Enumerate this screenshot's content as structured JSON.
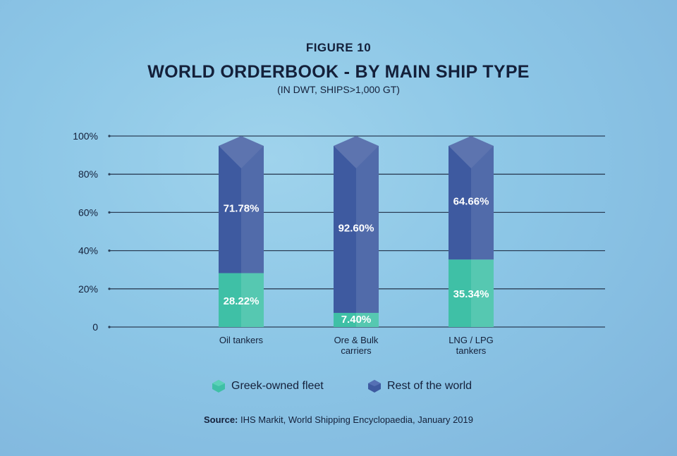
{
  "header": {
    "figure": "FIGURE 10",
    "title": "WORLD ORDERBOOK - BY MAIN SHIP TYPE",
    "subtitle": "(IN DWT, SHIPS>1,000 GT)"
  },
  "chart_data": {
    "type": "bar",
    "stacked": true,
    "categories": [
      [
        "Oil tankers"
      ],
      [
        "Ore & Bulk",
        "carriers"
      ],
      [
        "LNG / LPG",
        "tankers"
      ]
    ],
    "series": [
      {
        "name": "Greek-owned fleet",
        "values": [
          28.22,
          7.4,
          35.34
        ],
        "labels": [
          "28.22%",
          "7.40%",
          "35.34%"
        ],
        "color": "#3fc0a6"
      },
      {
        "name": "Rest of the world",
        "values": [
          71.78,
          92.6,
          64.66
        ],
        "labels": [
          "71.78%",
          "92.60%",
          "64.66%"
        ],
        "color": "#3e5aa0"
      }
    ],
    "yticks": [
      "0",
      "20%",
      "40%",
      "60%",
      "80%",
      "100%"
    ],
    "ylim": [
      0,
      100
    ],
    "grid": true,
    "legend_position": "bottom"
  },
  "legend": {
    "greek": "Greek-owned fleet",
    "rest": "Rest of the world"
  },
  "source": {
    "label": "Source:",
    "text": " IHS Markit, World Shipping Encyclopaedia, January 2019"
  }
}
